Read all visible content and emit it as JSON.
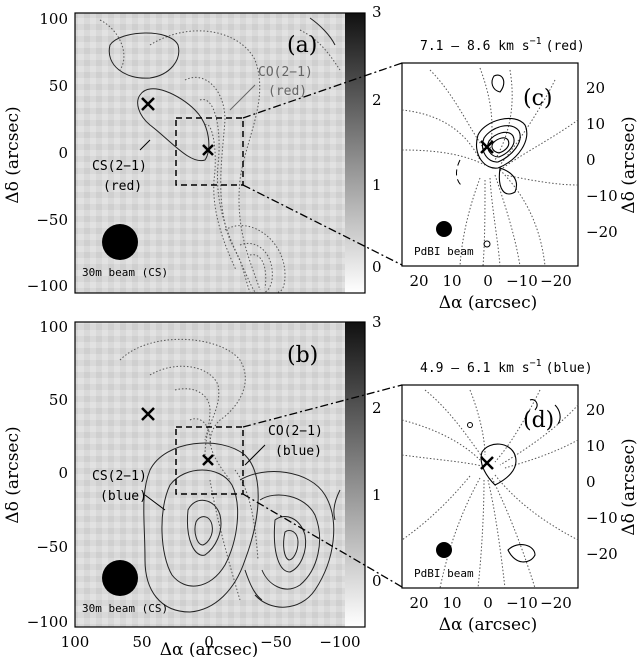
{
  "chart_data": [
    {
      "panel": "(a)",
      "type": "heatmap",
      "xlim": [
        100,
        -100
      ],
      "ylim": [
        -105,
        105
      ],
      "yticks": [
        100,
        50,
        0,
        -50,
        -100
      ],
      "ylabel": "Δδ (arcsec)",
      "colorbar": {
        "min": 0,
        "max": 3,
        "ticks": [
          "3",
          "2",
          "1",
          "0"
        ]
      },
      "annotations": {
        "co": "CO(2–1)",
        "co_sub": "(red)",
        "cs": "CS(2–1)",
        "cs_sub": "(red)",
        "beam": "30m beam (CS)"
      },
      "markers": [
        {
          "x": 45,
          "y": 35
        },
        {
          "x": 0,
          "y": 0
        }
      ],
      "zoom_box": {
        "x": [
          25,
          -25
        ],
        "y": [
          25,
          -25
        ]
      }
    },
    {
      "panel": "(b)",
      "type": "heatmap",
      "xlim": [
        100,
        -100
      ],
      "ylim": [
        -105,
        105
      ],
      "xticks": [
        "100",
        "50",
        "0",
        "−50",
        "−100"
      ],
      "xlabel": "Δα (arcsec)",
      "yticks": [
        100,
        50,
        0,
        -50,
        -100
      ],
      "ylabel": "Δδ (arcsec)",
      "colorbar": {
        "min": 0,
        "max": 3,
        "ticks": [
          "3",
          "2",
          "1",
          "0"
        ]
      },
      "annotations": {
        "co": "CO(2–1)",
        "co_sub": "(blue)",
        "cs": "CS(2–1)",
        "cs_sub": "(blue)",
        "beam": "30m beam (CS)"
      },
      "markers": [
        {
          "x": 45,
          "y": 35
        },
        {
          "x": 0,
          "y": 0
        }
      ],
      "zoom_box": {
        "x": [
          25,
          -25
        ],
        "y": [
          25,
          -25
        ]
      }
    },
    {
      "panel": "(c)",
      "type": "contour",
      "title": "7.1 – 8.6 km s⁻¹ (red)",
      "xlim": [
        27,
        -27
      ],
      "ylim": [
        -24,
        24
      ],
      "xticks": [
        "20",
        "10",
        "0",
        "−10",
        "−20"
      ],
      "xlabel": "Δα (arcsec)",
      "yticks": [
        "20",
        "10",
        "0",
        "−10",
        "−20"
      ],
      "ylabel": "Δδ (arcsec)",
      "beam_label": "PdBI beam",
      "marker": {
        "x": 0,
        "y": 0
      }
    },
    {
      "panel": "(d)",
      "type": "contour",
      "title": "4.9 – 6.1 km s⁻¹ (blue)",
      "xlim": [
        27,
        -27
      ],
      "ylim": [
        -24,
        24
      ],
      "xticks": [
        "20",
        "10",
        "0",
        "−10",
        "−20"
      ],
      "xlabel": "Δα (arcsec)",
      "yticks": [
        "20",
        "10",
        "0",
        "−10",
        "−20"
      ],
      "ylabel": "Δδ (arcsec)",
      "beam_label": "PdBI beam",
      "marker": {
        "x": 0,
        "y": 0
      }
    }
  ],
  "labels": {
    "a": "(a)",
    "b": "(b)",
    "c": "(c)",
    "d": "(d)",
    "ylabel": "Δδ (arcsec)",
    "xlabel": "Δα (arcsec)",
    "c_title": "7.1 – 8.6 km s",
    "c_title_tail": "(red)",
    "d_title": "4.9 – 6.1 km s",
    "d_title_tail": "(blue)",
    "unit_exp": "−1",
    "tick_a_100": "100",
    "tick_a_50": "50",
    "tick_a_0": "0",
    "tick_a_m50": "−50",
    "tick_a_m100": "−100",
    "tick_b_100": "100",
    "tick_b_50": "50",
    "tick_b_0": "0",
    "tick_b_m50": "−50",
    "tick_b_m100": "−100",
    "xt_100": "100",
    "xt_50": "50",
    "xt_0": "0",
    "xt_m50": "−50",
    "xt_m100": "−100",
    "cb_3": "3",
    "cb_2": "2",
    "cb_1": "1",
    "cb_0": "0",
    "s_20": "20",
    "s_10": "10",
    "s_0": "0",
    "s_m10": "−10",
    "s_m20": "−20",
    "sx": "20   10    0  −10 −20",
    "co_a": "CO(2−1)",
    "red_a": "(red)",
    "cs_a": "CS(2−1)",
    "cs_a2": "(red)",
    "co_b": "CO(2−1)",
    "blue_b": "(blue)",
    "cs_b": "CS(2−1)",
    "cs_b2": "(blue)",
    "beam30": "30m beam (CS)",
    "pdbi": "PdBI beam"
  }
}
